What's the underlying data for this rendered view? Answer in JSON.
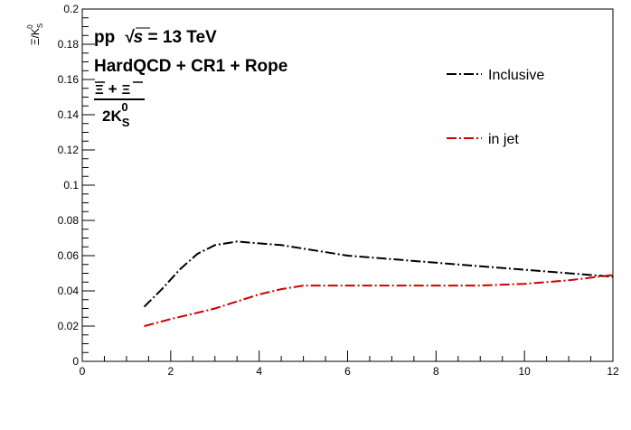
{
  "chart_data": {
    "type": "line",
    "xlim": [
      0,
      12
    ],
    "ylim": [
      0,
      0.2
    ],
    "x_ticks": [
      "0",
      "2",
      "4",
      "6",
      "8",
      "10",
      "12"
    ],
    "y_ticks": [
      "0",
      "0.02",
      "0.04",
      "0.06",
      "0.08",
      "0.1",
      "0.12",
      "0.14",
      "0.16",
      "0.18",
      "0.2"
    ],
    "ylabel_main": "Ξ/K",
    "ylabel_sup": "0",
    "ylabel_sub": "S",
    "xlabel": "",
    "grid": false,
    "legend_position": "top-right",
    "annotations": {
      "line1_a": "pp",
      "line1_b": "√s",
      "line1_c": " = 13 TeV",
      "line2": "HardQCD + CR1 + Rope",
      "ratio_num_a": "Ξ",
      "ratio_num_plus": "+",
      "ratio_num_b": "Ξ",
      "ratio_den": "2K",
      "ratio_den_sup": "0",
      "ratio_den_sub": "S"
    },
    "series": [
      {
        "name": "Inclusive",
        "color": "#000000",
        "x": [
          1.4,
          1.8,
          2.2,
          2.6,
          3.0,
          3.5,
          4.0,
          4.5,
          5.0,
          6.0,
          7.0,
          8.0,
          9.0,
          10.0,
          11.0,
          12.0
        ],
        "y": [
          0.031,
          0.041,
          0.052,
          0.061,
          0.066,
          0.068,
          0.067,
          0.066,
          0.064,
          0.06,
          0.058,
          0.056,
          0.054,
          0.052,
          0.05,
          0.048
        ]
      },
      {
        "name": "in jet",
        "color": "#cc0000",
        "x": [
          1.4,
          2.0,
          2.5,
          3.0,
          3.5,
          4.0,
          4.5,
          5.0,
          5.5,
          6.0,
          7.0,
          8.0,
          9.0,
          10.0,
          11.0,
          12.0
        ],
        "y": [
          0.02,
          0.024,
          0.027,
          0.03,
          0.034,
          0.038,
          0.041,
          0.043,
          0.043,
          0.043,
          0.043,
          0.043,
          0.043,
          0.044,
          0.046,
          0.049
        ]
      }
    ]
  }
}
